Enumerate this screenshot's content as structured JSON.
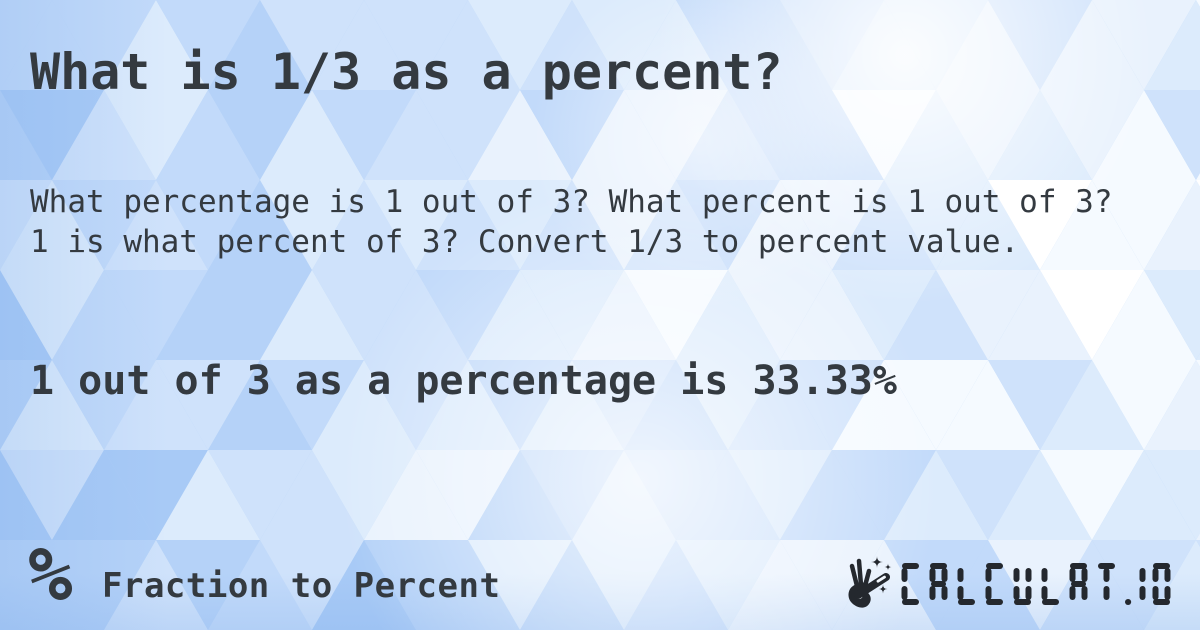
{
  "card": {
    "title": "What is 1/3 as a percent?",
    "description": "What percentage is 1 out of 3? What percent is 1 out of 3? 1 is what percent of 3? Convert 1/3 to percent value.",
    "result": "1 out of 3 as a percentage is 33.33%"
  },
  "footer": {
    "category_icon_glyph": "%",
    "category_label": "Fraction to Percent",
    "logo_text": "CALCULAT.IO"
  },
  "colors": {
    "text": "#343a40",
    "logo": "#24282e",
    "background_base": "#b7d4f8",
    "pattern_palette": [
      "#ffffff",
      "#f5faff",
      "#e9f2fd",
      "#dcebfc",
      "#cfe2fb",
      "#c2dafa",
      "#b5d2f8",
      "#a8caf6",
      "#9cc2f4"
    ]
  }
}
